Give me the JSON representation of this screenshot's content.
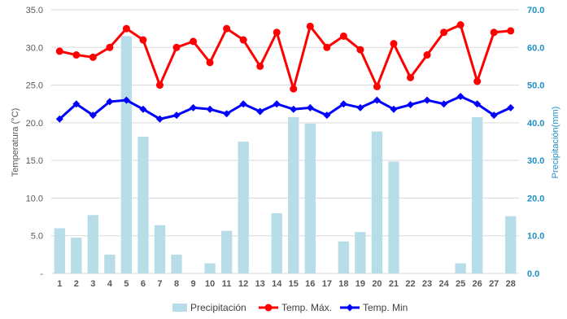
{
  "chart_data": {
    "type": "bar-line-combo",
    "categories": [
      "1",
      "2",
      "3",
      "4",
      "5",
      "6",
      "7",
      "8",
      "9",
      "10",
      "11",
      "12",
      "13",
      "14",
      "15",
      "16",
      "17",
      "18",
      "19",
      "20",
      "21",
      "22",
      "23",
      "24",
      "25",
      "26",
      "27",
      "28"
    ],
    "yleft_label": "Temperatura (°C)",
    "yright_label": "Precipitación(mm)",
    "yleft_lim": [
      0,
      35
    ],
    "yright_lim": [
      0,
      70
    ],
    "yleft_ticks": [
      "-",
      "5.0",
      "10.0",
      "15.0",
      "20.0",
      "25.0",
      "30.0",
      "35.0"
    ],
    "yright_ticks": [
      "0.0",
      "10.0",
      "20.0",
      "30.0",
      "40.0",
      "50.0",
      "60.0",
      "70.0"
    ],
    "grid": "horizontal",
    "legend_position": "bottom",
    "series": [
      {
        "name": "Precipitación",
        "kind": "bar",
        "axis": "right",
        "color": "#b7dde8",
        "values": [
          12.0,
          9.5,
          15.5,
          5.0,
          63.0,
          36.3,
          12.8,
          5.0,
          0,
          2.7,
          11.3,
          35.0,
          0,
          16.0,
          41.5,
          39.8,
          0,
          8.5,
          11.0,
          37.7,
          29.7,
          0,
          0,
          0,
          2.7,
          41.5,
          0,
          15.2
        ]
      },
      {
        "name": "Temp. Máx.",
        "kind": "line",
        "axis": "left",
        "color": "#ff0000",
        "values": [
          29.5,
          29.0,
          28.7,
          30.0,
          32.5,
          31.0,
          25.0,
          30.0,
          30.8,
          28.0,
          32.5,
          31.0,
          27.5,
          32.0,
          24.5,
          32.8,
          30.0,
          31.5,
          29.7,
          24.8,
          30.5,
          26.0,
          29.0,
          32.0,
          33.0,
          25.5,
          32.0,
          32.2
        ]
      },
      {
        "name": "Temp. Min",
        "kind": "line",
        "axis": "left",
        "color": "#0000ff",
        "values": [
          20.5,
          22.5,
          21.0,
          22.8,
          23.0,
          21.8,
          20.5,
          21.0,
          22.0,
          21.8,
          21.2,
          22.5,
          21.5,
          22.5,
          21.8,
          22.0,
          21.0,
          22.5,
          22.0,
          23.0,
          21.8,
          22.4,
          23.0,
          22.5,
          23.5,
          22.5,
          21.0,
          22.0
        ]
      }
    ]
  }
}
